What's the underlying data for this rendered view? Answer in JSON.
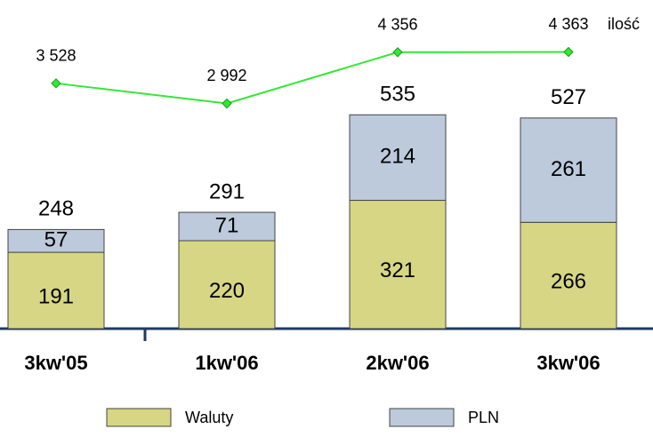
{
  "chart_data": {
    "type": "bar",
    "stacked": true,
    "categories": [
      "3kw'05",
      "1kw'06",
      "2kw'06",
      "3kw'06"
    ],
    "series": [
      {
        "name": "Waluty",
        "color": "#d6d684",
        "values": [
          191,
          220,
          321,
          266
        ]
      },
      {
        "name": "PLN",
        "color": "#bccadb",
        "values": [
          57,
          71,
          214,
          261
        ]
      },
      {
        "name": "ilość",
        "type": "line",
        "axis": "y2",
        "color": "#33e833",
        "values": [
          3528,
          2992,
          4356,
          4363
        ],
        "value_labels": [
          "3 528",
          "2 992",
          "4 356",
          "4 363"
        ]
      }
    ],
    "totals": [
      248,
      291,
      535,
      527
    ],
    "ylim": [
      0,
      600
    ],
    "y2lim": [
      -3000,
      4800
    ]
  }
}
